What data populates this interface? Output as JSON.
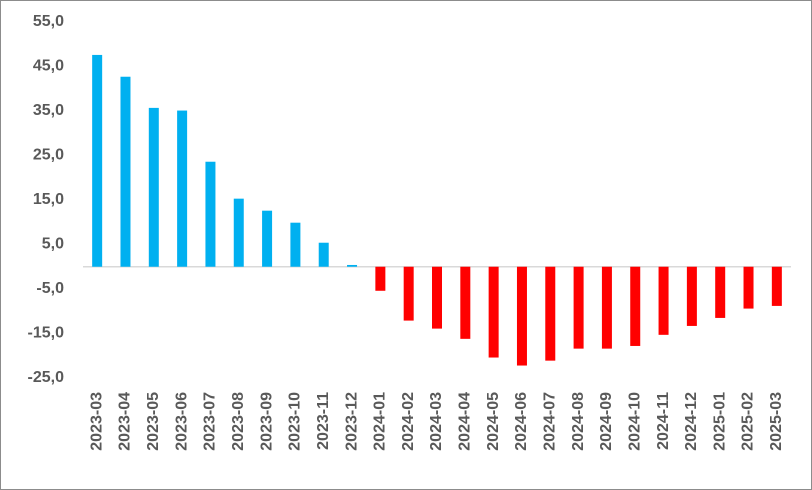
{
  "chart_data": {
    "type": "bar",
    "categories": [
      "2023-03",
      "2023-04",
      "2023-05",
      "2023-06",
      "2023-07",
      "2023-08",
      "2023-09",
      "2023-10",
      "2023-11",
      "2023-12",
      "2024-01",
      "2024-02",
      "2024-03",
      "2024-04",
      "2024-05",
      "2024-06",
      "2024-07",
      "2024-08",
      "2024-09",
      "2024-10",
      "2024-11",
      "2024-12",
      "2025-01",
      "2025-02",
      "2025-03"
    ],
    "values": [
      47.6,
      42.7,
      35.7,
      35.1,
      23.6,
      15.3,
      12.6,
      9.9,
      5.4,
      0.4,
      -5.4,
      -12.1,
      -13.9,
      -16.2,
      -20.4,
      -22.2,
      -21.1,
      -18.4,
      -18.4,
      -17.8,
      -15.3,
      -13.3,
      -11.5,
      -9.4,
      -8.8
    ],
    "positive_color": "#00b0f0",
    "negative_color": "#ff0000",
    "ylim": [
      -25,
      55
    ],
    "yticks": [
      {
        "value": -25,
        "label": "-25,0"
      },
      {
        "value": -15,
        "label": "-15,0"
      },
      {
        "value": -5,
        "label": "-5,0"
      },
      {
        "value": 5,
        "label": "5,0"
      },
      {
        "value": 15,
        "label": "15,0"
      },
      {
        "value": 25,
        "label": "25,0"
      },
      {
        "value": 35,
        "label": "35,0"
      },
      {
        "value": 45,
        "label": "45,0"
      },
      {
        "value": 55,
        "label": "55,0"
      }
    ],
    "grid": false
  }
}
